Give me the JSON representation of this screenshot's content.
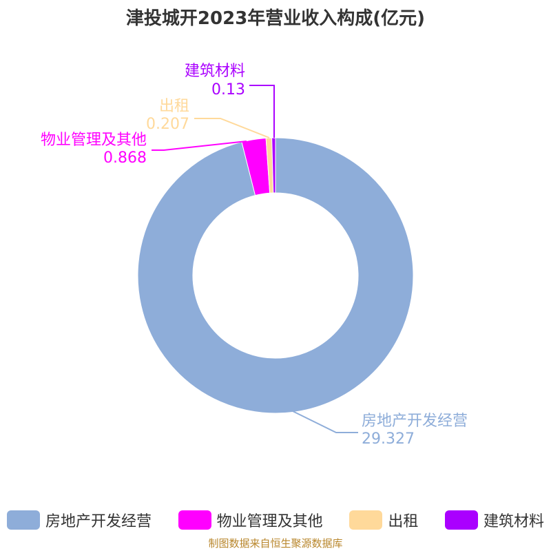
{
  "title": "津投城开2023年营业收入构成(亿元)",
  "source": "制图数据来自恒生聚源数据库",
  "chart_data": {
    "type": "pie",
    "donut": true,
    "title": "津投城开2023年营业收入构成(亿元)",
    "legend_position": "bottom",
    "series": [
      {
        "name": "房地产开发经营",
        "value": 29.327,
        "color": "#8eadd9"
      },
      {
        "name": "物业管理及其他",
        "value": 0.868,
        "color": "#ff00ff"
      },
      {
        "name": "出租",
        "value": 0.207,
        "color": "#ffd99a"
      },
      {
        "name": "建筑材料",
        "value": 0.13,
        "color": "#aa00ff"
      }
    ]
  }
}
